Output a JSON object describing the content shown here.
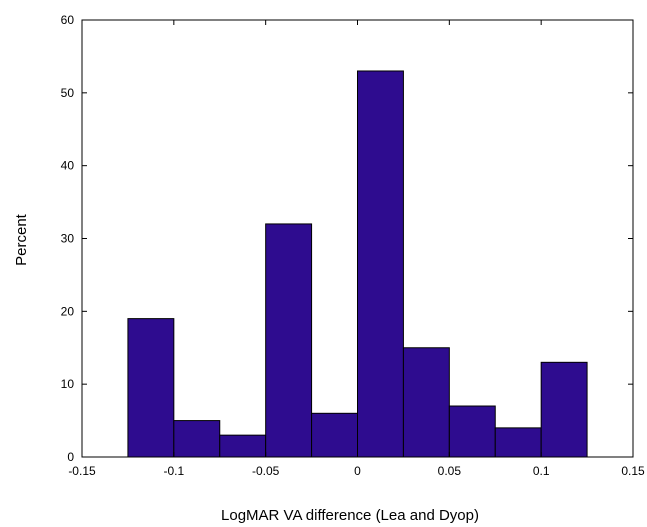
{
  "chart_data": {
    "type": "bar",
    "subtype": "histogram",
    "title": "",
    "xlabel": "LogMAR VA difference (Lea and Dyop)",
    "ylabel": "Percent",
    "xlim": [
      -0.15,
      0.15
    ],
    "ylim": [
      0,
      60
    ],
    "bin_width": 0.025,
    "x": [
      -0.1125,
      -0.0875,
      -0.0625,
      -0.0375,
      -0.0125,
      0.0125,
      0.0375,
      0.0625,
      0.0875,
      0.1125
    ],
    "values": [
      19,
      5,
      3,
      32,
      6,
      53,
      15,
      7,
      4,
      13
    ],
    "xticks": [
      -0.15,
      -0.1,
      -0.05,
      0,
      0.05,
      0.1,
      0.15
    ],
    "xtick_labels": [
      "-0.15",
      "-0.1",
      "-0.05",
      "0",
      "0.05",
      "0.1",
      "0.15"
    ],
    "yticks": [
      0,
      10,
      20,
      30,
      40,
      50,
      60
    ],
    "ytick_labels": [
      "0",
      "10",
      "20",
      "30",
      "40",
      "50",
      "60"
    ],
    "grid": false,
    "bar_color": "#2e0c8f",
    "edge_color": "#000000"
  }
}
